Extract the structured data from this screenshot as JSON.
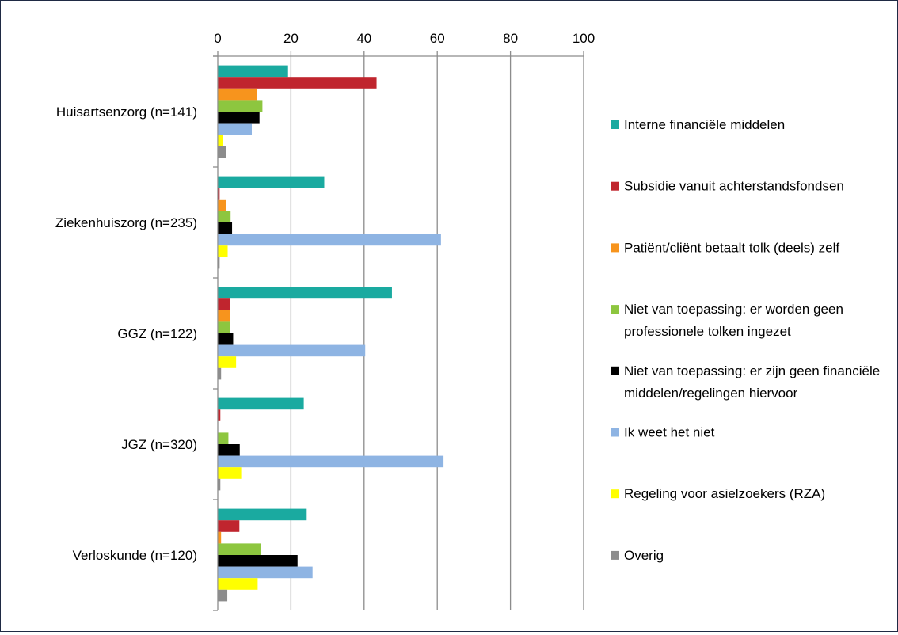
{
  "chart_data": {
    "type": "bar",
    "orientation": "horizontal",
    "x_axis_position": "top",
    "xlim": [
      0,
      100
    ],
    "x_ticks": [
      0,
      20,
      40,
      60,
      80,
      100
    ],
    "grid": "vertical",
    "legend_position": "right",
    "categories": [
      "Huisartsenzorg (n=141)",
      "Ziekenhuiszorg (n=235)",
      "GGZ (n=122)",
      "JGZ (n=320)",
      "Verloskunde (n=120)"
    ],
    "series": [
      {
        "name": "Interne financiële middelen",
        "color": "#1aaaa0",
        "values": [
          19.1,
          29.0,
          47.5,
          23.4,
          24.2
        ]
      },
      {
        "name": "Subsidie vanuit achterstandsfondsen",
        "color": "#c0252e",
        "values": [
          43.3,
          0.4,
          3.3,
          0.6,
          5.8
        ]
      },
      {
        "name": "Patiënt/cliënt betaalt tolk (deels) zelf",
        "color": "#f7941d",
        "values": [
          10.6,
          2.1,
          3.3,
          0,
          0.8
        ]
      },
      {
        "name": "Niet van toepassing: er worden geen professionele tolken ingezet",
        "color": "#8dc63f",
        "values": [
          12.1,
          3.4,
          3.3,
          2.8,
          11.7
        ]
      },
      {
        "name": "Niet van toepassing: er zijn geen financiële middelen/regelingen hiervoor",
        "color": "#000000",
        "values": [
          11.3,
          3.8,
          4.1,
          5.9,
          21.7
        ]
      },
      {
        "name": "Ik weet het niet",
        "color": "#8eb4e3",
        "values": [
          9.2,
          60.9,
          40.2,
          61.6,
          25.8
        ]
      },
      {
        "name": "Regeling voor asielzoekers (RZA)",
        "color": "#ffff00",
        "values": [
          1.4,
          2.6,
          4.9,
          6.3,
          10.8
        ]
      },
      {
        "name": "Overig",
        "color": "#8c8c8c",
        "values": [
          2.1,
          0.4,
          0.8,
          0.6,
          2.5
        ]
      }
    ]
  }
}
